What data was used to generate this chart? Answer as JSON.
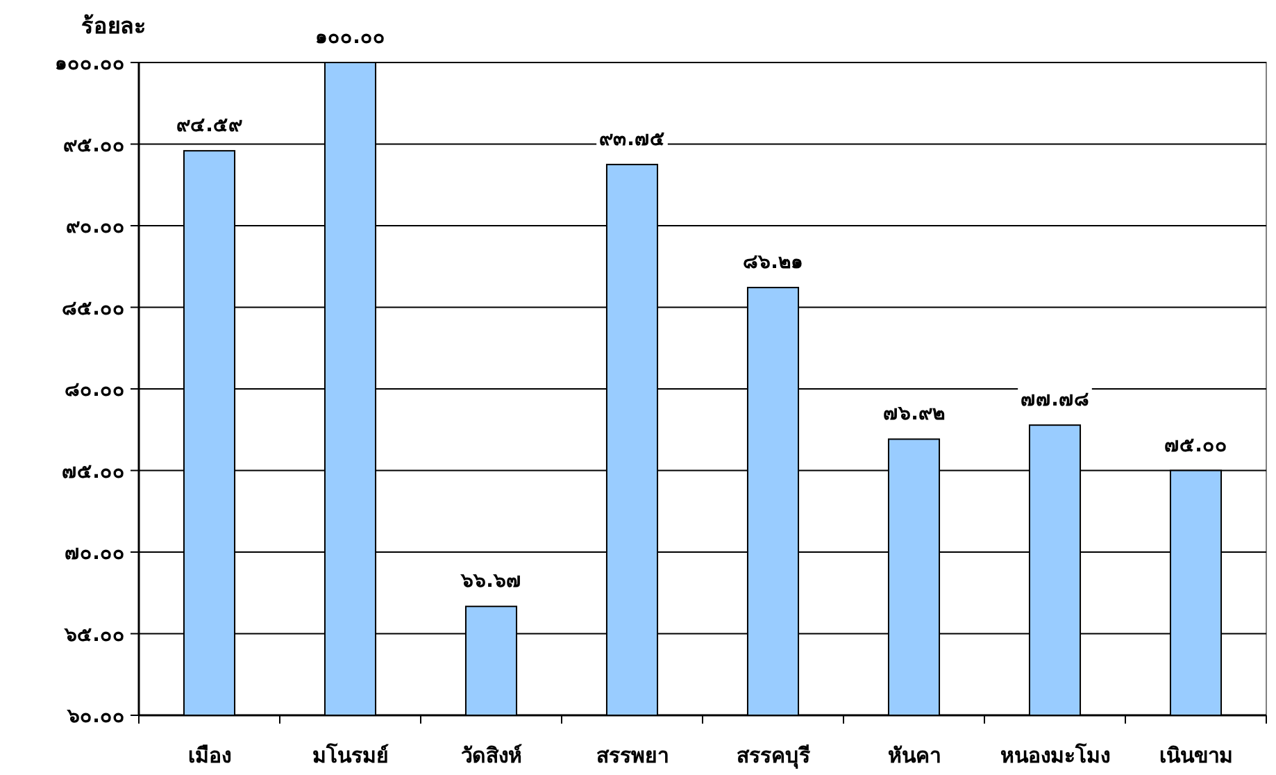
{
  "chart_data": {
    "type": "bar",
    "ylabel": "ร้อยละ",
    "categories": [
      "เมือง",
      "มโนรมย์",
      "วัดสิงห์",
      "สรรพยา",
      "สรรคบุรี",
      "หันคา",
      "หนองมะโมง",
      "เนินขาม"
    ],
    "values": [
      94.59,
      100.0,
      66.67,
      93.75,
      86.21,
      76.92,
      77.78,
      75.0
    ],
    "value_labels": [
      "๙๔.๕๙",
      "๑๐๐.๐๐",
      "๖๖.๖๗",
      "๙๓.๗๕",
      "๘๖.๒๑",
      "๗๖.๙๒",
      "๗๗.๗๘",
      "๗๕.๐๐"
    ],
    "color": "#99ccff",
    "ylim": [
      60,
      100
    ],
    "yticks": [
      {
        "value": 60,
        "label": "๖๐.๐๐"
      },
      {
        "value": 65,
        "label": "๖๕.๐๐"
      },
      {
        "value": 70,
        "label": "๗๐.๐๐"
      },
      {
        "value": 75,
        "label": "๗๕.๐๐"
      },
      {
        "value": 80,
        "label": "๘๐.๐๐"
      },
      {
        "value": 85,
        "label": "๘๕.๐๐"
      },
      {
        "value": 90,
        "label": "๙๐.๐๐"
      },
      {
        "value": 95,
        "label": "๙๕.๐๐"
      },
      {
        "value": 100,
        "label": "๑๐๐.๐๐"
      }
    ],
    "grid": "y"
  }
}
